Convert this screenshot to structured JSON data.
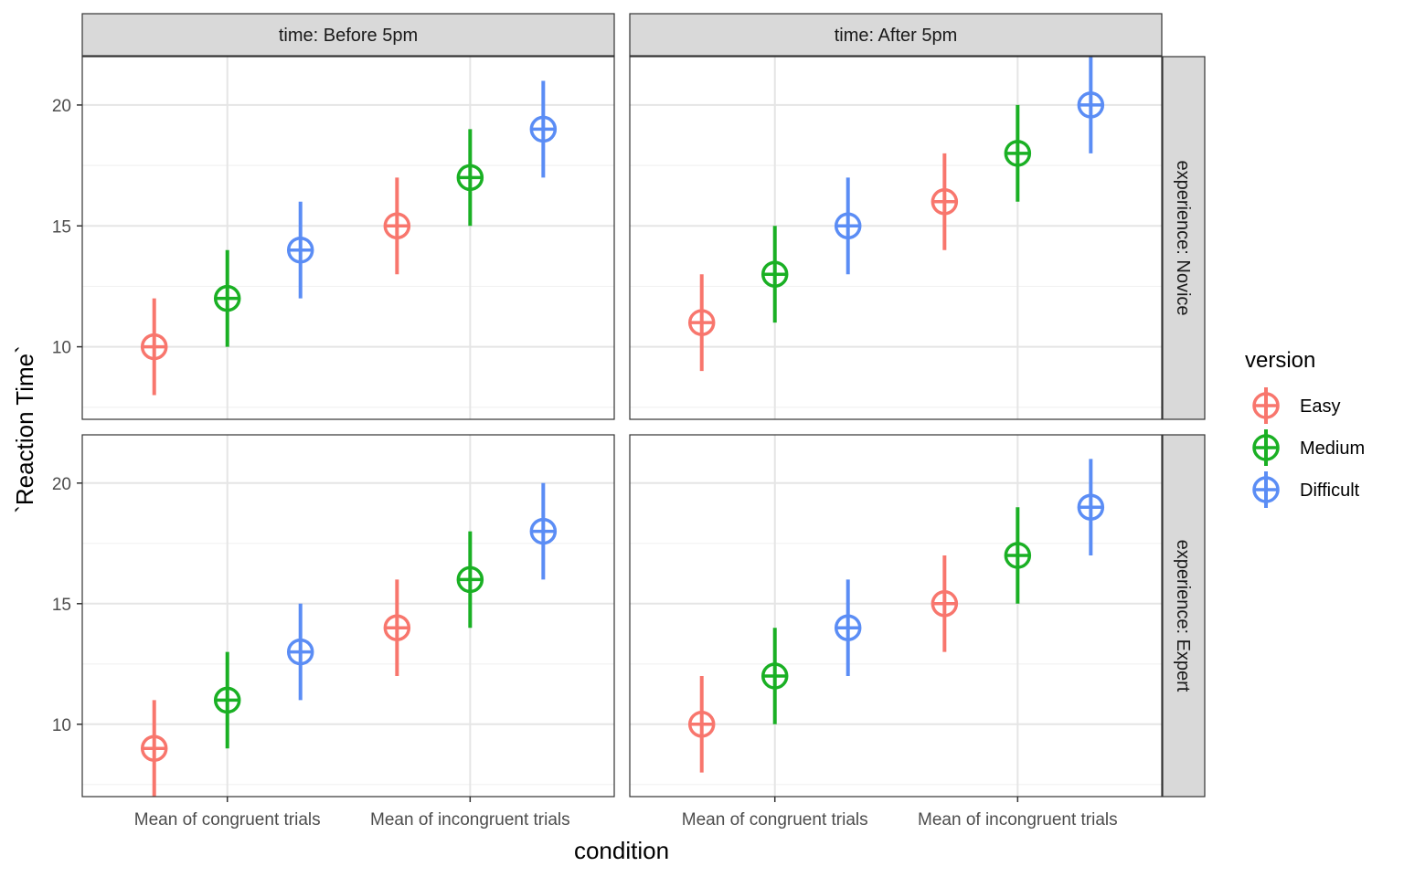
{
  "chart_data": {
    "type": "scatter",
    "geom": "pointrange",
    "xlabel": "condition",
    "ylabel": "`Reaction Time`",
    "categories": [
      "Mean of congruent trials",
      "Mean of incongruent trials"
    ],
    "ylim": [
      7,
      22
    ],
    "y_ticks": [
      10,
      15,
      20
    ],
    "grid": true,
    "legend": {
      "title": "version",
      "position": "right",
      "entries": [
        "Easy",
        "Medium",
        "Difficult"
      ]
    },
    "series_colors": {
      "Easy": "#F8766D",
      "Medium": "#1AB024",
      "Difficult": "#5B8DF5"
    },
    "facet_cols": [
      {
        "label": "time: Before 5pm"
      },
      {
        "label": "time: After 5pm"
      }
    ],
    "facet_rows": [
      {
        "label": "experience: Novice"
      },
      {
        "label": "experience: Expert"
      }
    ],
    "panels": [
      {
        "col": "time: Before 5pm",
        "row": "experience: Novice",
        "series": [
          {
            "name": "Easy",
            "values": [
              10,
              15
            ],
            "lower": [
              8,
              13
            ],
            "upper": [
              12,
              17
            ]
          },
          {
            "name": "Medium",
            "values": [
              12,
              17
            ],
            "lower": [
              10,
              15
            ],
            "upper": [
              14,
              19
            ]
          },
          {
            "name": "Difficult",
            "values": [
              14,
              19
            ],
            "lower": [
              12,
              17
            ],
            "upper": [
              16,
              21
            ]
          }
        ]
      },
      {
        "col": "time: After 5pm",
        "row": "experience: Novice",
        "series": [
          {
            "name": "Easy",
            "values": [
              11,
              16
            ],
            "lower": [
              9,
              14
            ],
            "upper": [
              13,
              18
            ]
          },
          {
            "name": "Medium",
            "values": [
              13,
              18
            ],
            "lower": [
              11,
              16
            ],
            "upper": [
              15,
              20
            ]
          },
          {
            "name": "Difficult",
            "values": [
              15,
              20
            ],
            "lower": [
              13,
              18
            ],
            "upper": [
              17,
              22
            ]
          }
        ]
      },
      {
        "col": "time: Before 5pm",
        "row": "experience: Expert",
        "series": [
          {
            "name": "Easy",
            "values": [
              9,
              14
            ],
            "lower": [
              7,
              12
            ],
            "upper": [
              11,
              16
            ]
          },
          {
            "name": "Medium",
            "values": [
              11,
              16
            ],
            "lower": [
              9,
              14
            ],
            "upper": [
              13,
              18
            ]
          },
          {
            "name": "Difficult",
            "values": [
              13,
              18
            ],
            "lower": [
              11,
              16
            ],
            "upper": [
              15,
              20
            ]
          }
        ]
      },
      {
        "col": "time: After 5pm",
        "row": "experience: Expert",
        "series": [
          {
            "name": "Easy",
            "values": [
              10,
              15
            ],
            "lower": [
              8,
              13
            ],
            "upper": [
              12,
              17
            ]
          },
          {
            "name": "Medium",
            "values": [
              12,
              17
            ],
            "lower": [
              10,
              15
            ],
            "upper": [
              14,
              19
            ]
          },
          {
            "name": "Difficult",
            "values": [
              14,
              19
            ],
            "lower": [
              12,
              17
            ],
            "upper": [
              16,
              21
            ]
          }
        ]
      }
    ]
  }
}
